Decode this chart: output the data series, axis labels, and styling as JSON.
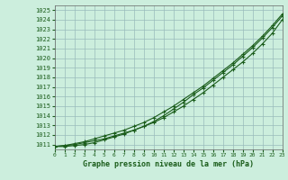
{
  "title": "Graphe pression niveau de la mer (hPa)",
  "bg_color": "#cceedd",
  "grid_color": "#99bbbb",
  "line_color": "#1a5c1a",
  "marker_color": "#1a5c1a",
  "x_min": 0,
  "x_max": 23,
  "y_min": 1010.5,
  "y_max": 1025.5,
  "y_ticks": [
    1011,
    1012,
    1013,
    1014,
    1015,
    1016,
    1017,
    1018,
    1019,
    1020,
    1021,
    1022,
    1023,
    1024,
    1025
  ],
  "x_ticks": [
    0,
    1,
    2,
    3,
    4,
    5,
    6,
    7,
    8,
    9,
    10,
    11,
    12,
    13,
    14,
    15,
    16,
    17,
    18,
    19,
    20,
    21,
    22,
    23
  ],
  "series1": [
    1010.8,
    1010.9,
    1011.0,
    1011.2,
    1011.4,
    1011.6,
    1011.9,
    1012.2,
    1012.5,
    1012.9,
    1013.3,
    1013.8,
    1014.4,
    1015.0,
    1015.7,
    1016.4,
    1017.2,
    1018.0,
    1018.8,
    1019.6,
    1020.5,
    1021.5,
    1022.6,
    1024.0
  ],
  "series2": [
    1010.8,
    1010.9,
    1011.1,
    1011.3,
    1011.6,
    1011.9,
    1012.2,
    1012.5,
    1012.9,
    1013.3,
    1013.8,
    1014.4,
    1015.0,
    1015.7,
    1016.4,
    1017.1,
    1017.9,
    1018.7,
    1019.5,
    1020.4,
    1021.3,
    1022.3,
    1023.4,
    1024.6
  ],
  "series3": [
    1010.8,
    1010.8,
    1010.9,
    1011.0,
    1011.2,
    1011.5,
    1011.8,
    1012.1,
    1012.5,
    1012.9,
    1013.4,
    1014.0,
    1014.7,
    1015.4,
    1016.2,
    1016.9,
    1017.7,
    1018.5,
    1019.3,
    1020.2,
    1021.1,
    1022.1,
    1023.2,
    1024.4
  ]
}
